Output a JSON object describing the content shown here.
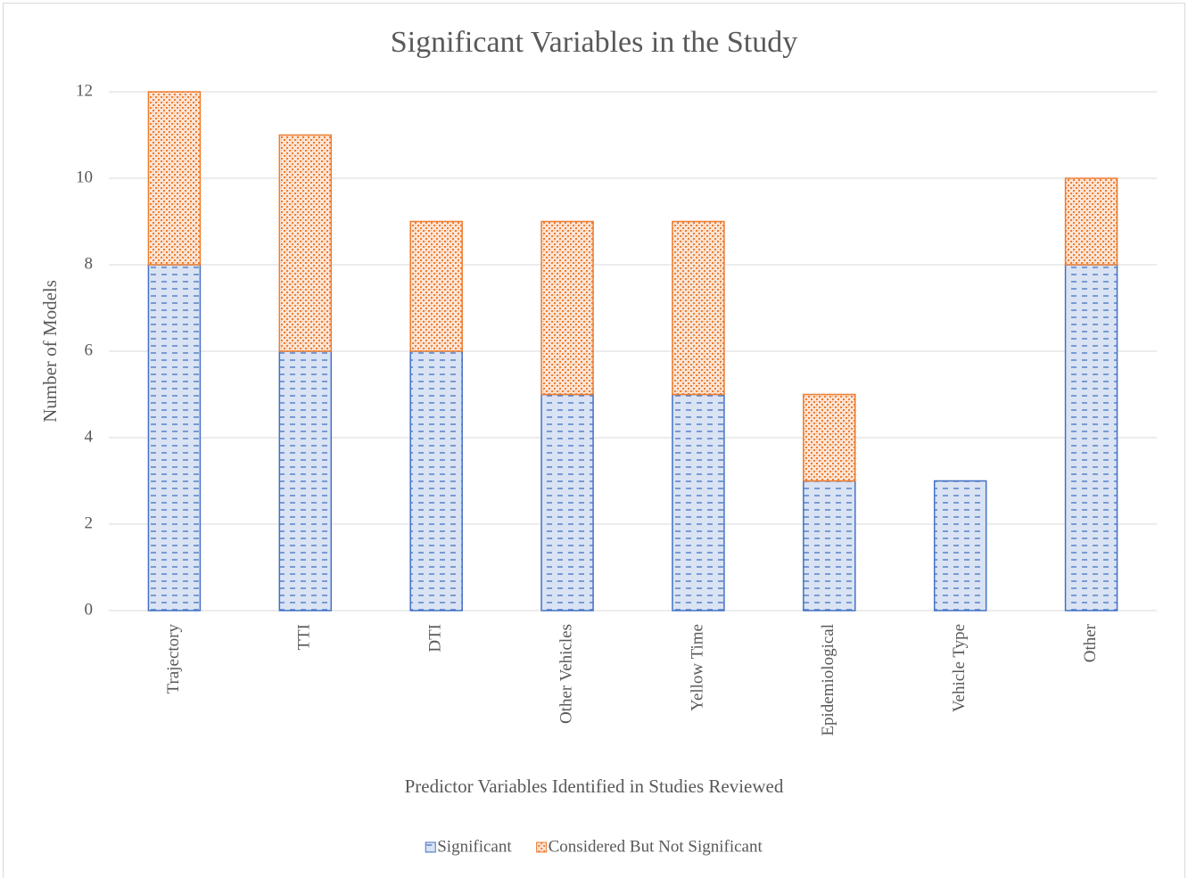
{
  "chart_data": {
    "type": "stacked_bar",
    "title": "Significant Variables in the Study",
    "x_label": "Predictor Variables Identified in Studies Reviewed",
    "y_label": "Number of Models",
    "categories": [
      "Trajectory",
      "TTI",
      "DTI",
      "Other Vehicles",
      "Yellow Time",
      "Epidemiological",
      "Vehicle Type",
      "Other"
    ],
    "series": [
      {
        "name": "Significant",
        "color": "#4472c4",
        "values": [
          8,
          6,
          6,
          5,
          5,
          3,
          3,
          8
        ]
      },
      {
        "name": "Considered But Not Significant",
        "color": "#ed7d31",
        "values": [
          4,
          5,
          3,
          4,
          4,
          2,
          0,
          2
        ]
      }
    ],
    "ylim": [
      0,
      12
    ],
    "yticks": [
      0,
      2,
      4,
      6,
      8,
      10,
      12
    ],
    "grid": true,
    "legend": "bottom"
  }
}
